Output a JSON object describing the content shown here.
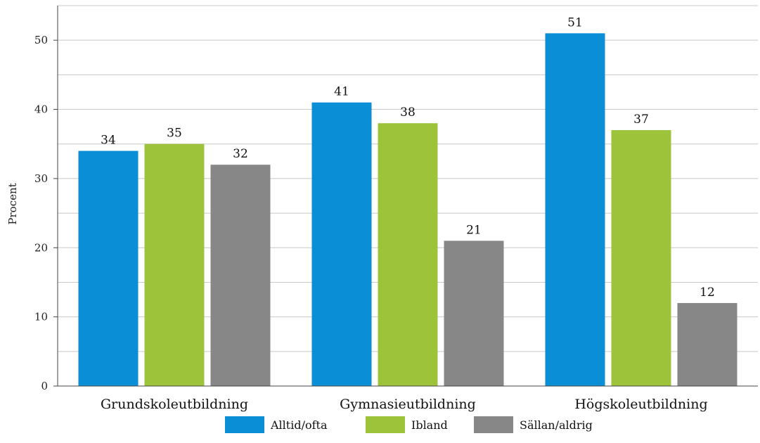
{
  "chart_data": {
    "type": "bar",
    "title": "",
    "xlabel": "",
    "ylabel": "Procent",
    "ylim": [
      0,
      55
    ],
    "yticks": [
      0,
      10,
      20,
      30,
      40,
      50
    ],
    "grid": true,
    "legend_position": "bottom",
    "categories": [
      "Grundskoleutbildning",
      "Gymnasieutbildning",
      "Högskoleutbildning"
    ],
    "series": [
      {
        "name": "Alltid/ofta",
        "color": "#0a8fd6",
        "values": [
          34,
          41,
          51
        ],
        "labels": [
          "34",
          "41",
          "51"
        ]
      },
      {
        "name": "Ibland",
        "color": "#9dc33b",
        "values": [
          35,
          38,
          37
        ],
        "labels": [
          "35",
          "38",
          "37"
        ]
      },
      {
        "name": "Sällan/aldrig",
        "color": "#878787",
        "values": [
          32,
          21,
          12
        ],
        "labels": [
          "32",
          "21",
          "12"
        ]
      }
    ]
  }
}
